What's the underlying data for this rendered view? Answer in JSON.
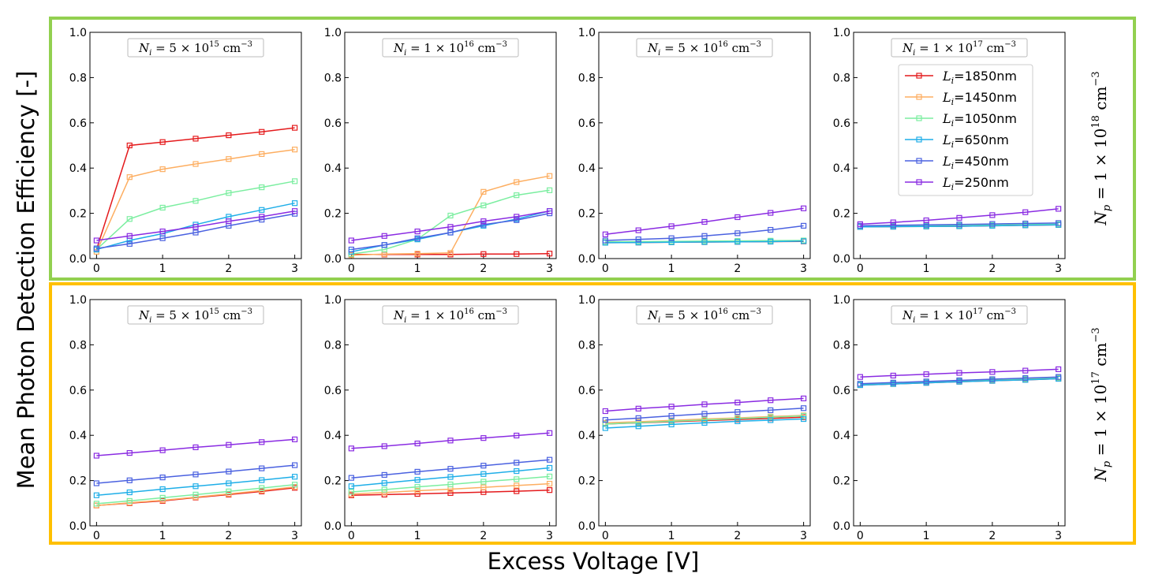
{
  "figure": {
    "ylabel": "Mean Photon Detection Efficiency [-]",
    "xlabel": "Excess Voltage [V]",
    "row_frame_colors": [
      "#92d050",
      "#ffc000"
    ]
  },
  "rows": [
    {
      "label_main": "N",
      "label_sub": "p",
      "label_eq": " = 1 × 10",
      "label_exp": "18",
      "label_unit": " cm",
      "label_unit_exp": "−3"
    },
    {
      "label_main": "N",
      "label_sub": "p",
      "label_eq": " = 1 × 10",
      "label_exp": "17",
      "label_unit": " cm",
      "label_unit_exp": "−3"
    }
  ],
  "panel_titles": [
    {
      "main": "N",
      "sub": "i",
      "eq": " = 5 × 10",
      "exp": "15",
      "unit": " cm",
      "unit_exp": "−3"
    },
    {
      "main": "N",
      "sub": "i",
      "eq": " = 1 × 10",
      "exp": "16",
      "unit": " cm",
      "unit_exp": "−3"
    },
    {
      "main": "N",
      "sub": "i",
      "eq": " = 5 × 10",
      "exp": "16",
      "unit": " cm",
      "unit_exp": "−3"
    },
    {
      "main": "N",
      "sub": "i",
      "eq": " = 1 × 10",
      "exp": "17",
      "unit": " cm",
      "unit_exp": "−3"
    }
  ],
  "chart_data": {
    "type": "line",
    "x": [
      0,
      0.5,
      1,
      1.5,
      2,
      2.5,
      3
    ],
    "xlim": [
      -0.1,
      3.1
    ],
    "ylim": [
      0,
      1.0
    ],
    "xticks": [
      "0",
      "1",
      "2",
      "3"
    ],
    "xtick_values": [
      0,
      1,
      2,
      3
    ],
    "yticks": [
      "0.0",
      "0.2",
      "0.4",
      "0.6",
      "0.8",
      "1.0"
    ],
    "ytick_values": [
      0,
      0.2,
      0.4,
      0.6,
      0.8,
      1.0
    ],
    "legend_location": "top-right of panel row1-col4",
    "series_meta": [
      {
        "label_main": "L",
        "label_sub": "i",
        "label_rest": "=1850nm",
        "color": "#e41a1c"
      },
      {
        "label_main": "L",
        "label_sub": "i",
        "label_rest": "=1450nm",
        "color": "#fdae61"
      },
      {
        "label_main": "L",
        "label_sub": "i",
        "label_rest": "=1050nm",
        "color": "#7beea0"
      },
      {
        "label_main": "L",
        "label_sub": "i",
        "label_rest": "=650nm",
        "color": "#1eaee8"
      },
      {
        "label_main": "L",
        "label_sub": "i",
        "label_rest": "=450nm",
        "color": "#4a61e0"
      },
      {
        "label_main": "L",
        "label_sub": "i",
        "label_rest": "=250nm",
        "color": "#8a2be2"
      }
    ],
    "panels": [
      {
        "row": 0,
        "col": 0,
        "series": [
          [
            0.04,
            0.5,
            0.515,
            0.53,
            0.545,
            0.56,
            0.578
          ],
          [
            0.03,
            0.36,
            0.395,
            0.418,
            0.44,
            0.462,
            0.482
          ],
          [
            0.04,
            0.175,
            0.225,
            0.255,
            0.29,
            0.315,
            0.342
          ],
          [
            0.04,
            0.08,
            0.11,
            0.15,
            0.185,
            0.215,
            0.245
          ],
          [
            0.045,
            0.065,
            0.09,
            0.115,
            0.145,
            0.172,
            0.198
          ],
          [
            0.08,
            0.1,
            0.12,
            0.14,
            0.165,
            0.185,
            0.21
          ]
        ]
      },
      {
        "row": 0,
        "col": 1,
        "series": [
          [
            0.018,
            0.018,
            0.018,
            0.018,
            0.02,
            0.02,
            0.022
          ],
          [
            0.015,
            0.02,
            0.022,
            0.025,
            0.295,
            0.338,
            0.365
          ],
          [
            0.02,
            0.04,
            0.085,
            0.19,
            0.235,
            0.28,
            0.302
          ],
          [
            0.03,
            0.06,
            0.085,
            0.115,
            0.145,
            0.175,
            0.21
          ],
          [
            0.04,
            0.06,
            0.09,
            0.115,
            0.15,
            0.17,
            0.2
          ],
          [
            0.08,
            0.1,
            0.12,
            0.14,
            0.165,
            0.185,
            0.21
          ]
        ]
      },
      {
        "row": 0,
        "col": 2,
        "series": [
          [
            0.07,
            0.071,
            0.072,
            0.073,
            0.074,
            0.075,
            0.076
          ],
          [
            0.072,
            0.073,
            0.074,
            0.075,
            0.076,
            0.077,
            0.078
          ],
          [
            0.074,
            0.075,
            0.076,
            0.077,
            0.078,
            0.079,
            0.08
          ],
          [
            0.07,
            0.071,
            0.072,
            0.073,
            0.074,
            0.075,
            0.077
          ],
          [
            0.08,
            0.085,
            0.09,
            0.1,
            0.112,
            0.127,
            0.145
          ],
          [
            0.107,
            0.125,
            0.143,
            0.162,
            0.183,
            0.202,
            0.222
          ]
        ]
      },
      {
        "row": 0,
        "col": 3,
        "series": [
          [
            0.14,
            0.141,
            0.142,
            0.143,
            0.145,
            0.147,
            0.149
          ],
          [
            0.142,
            0.143,
            0.144,
            0.145,
            0.147,
            0.149,
            0.151
          ],
          [
            0.143,
            0.144,
            0.145,
            0.146,
            0.148,
            0.15,
            0.152
          ],
          [
            0.14,
            0.141,
            0.142,
            0.143,
            0.145,
            0.147,
            0.149
          ],
          [
            0.145,
            0.147,
            0.149,
            0.151,
            0.153,
            0.155,
            0.157
          ],
          [
            0.152,
            0.16,
            0.169,
            0.18,
            0.192,
            0.205,
            0.22
          ]
        ]
      },
      {
        "row": 1,
        "col": 0,
        "series": [
          [
            0.09,
            0.1,
            0.11,
            0.125,
            0.138,
            0.152,
            0.168
          ],
          [
            0.09,
            0.102,
            0.113,
            0.127,
            0.141,
            0.156,
            0.172
          ],
          [
            0.098,
            0.11,
            0.124,
            0.138,
            0.152,
            0.167,
            0.182
          ],
          [
            0.135,
            0.148,
            0.162,
            0.175,
            0.188,
            0.202,
            0.217
          ],
          [
            0.188,
            0.201,
            0.214,
            0.227,
            0.24,
            0.254,
            0.268
          ],
          [
            0.31,
            0.322,
            0.334,
            0.347,
            0.358,
            0.37,
            0.382
          ]
        ]
      },
      {
        "row": 1,
        "col": 1,
        "series": [
          [
            0.135,
            0.138,
            0.141,
            0.145,
            0.149,
            0.153,
            0.158
          ],
          [
            0.14,
            0.147,
            0.155,
            0.162,
            0.17,
            0.178,
            0.186
          ],
          [
            0.15,
            0.16,
            0.172,
            0.183,
            0.195,
            0.206,
            0.218
          ],
          [
            0.175,
            0.189,
            0.203,
            0.216,
            0.229,
            0.242,
            0.256
          ],
          [
            0.212,
            0.225,
            0.239,
            0.252,
            0.266,
            0.279,
            0.292
          ],
          [
            0.342,
            0.352,
            0.364,
            0.377,
            0.388,
            0.399,
            0.41
          ]
        ]
      },
      {
        "row": 1,
        "col": 2,
        "series": [
          [
            0.45,
            0.455,
            0.46,
            0.465,
            0.47,
            0.475,
            0.48
          ],
          [
            0.455,
            0.46,
            0.466,
            0.472,
            0.477,
            0.483,
            0.488
          ],
          [
            0.45,
            0.456,
            0.462,
            0.468,
            0.474,
            0.48,
            0.486
          ],
          [
            0.432,
            0.44,
            0.448,
            0.455,
            0.462,
            0.467,
            0.472
          ],
          [
            0.468,
            0.476,
            0.486,
            0.495,
            0.503,
            0.511,
            0.52
          ],
          [
            0.507,
            0.518,
            0.527,
            0.537,
            0.545,
            0.555,
            0.563
          ]
        ]
      },
      {
        "row": 1,
        "col": 3,
        "series": [
          [
            0.622,
            0.627,
            0.632,
            0.637,
            0.641,
            0.645,
            0.65
          ],
          [
            0.624,
            0.629,
            0.634,
            0.639,
            0.643,
            0.648,
            0.652
          ],
          [
            0.626,
            0.631,
            0.636,
            0.641,
            0.646,
            0.65,
            0.655
          ],
          [
            0.622,
            0.627,
            0.632,
            0.637,
            0.641,
            0.645,
            0.65
          ],
          [
            0.628,
            0.633,
            0.638,
            0.643,
            0.648,
            0.653,
            0.658
          ],
          [
            0.658,
            0.664,
            0.67,
            0.676,
            0.68,
            0.686,
            0.692
          ]
        ]
      }
    ]
  }
}
